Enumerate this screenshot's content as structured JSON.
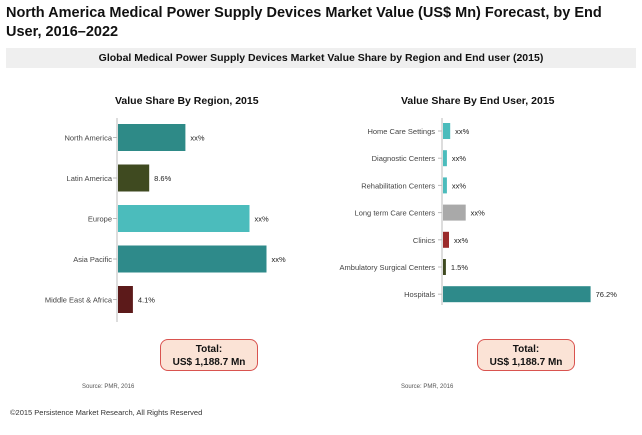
{
  "title": "North America Medical Power Supply Devices Market Value (US$ Mn) Forecast, by End User, 2016–2022",
  "subtitle": "Global Medical Power Supply Devices Market Value Share by Region and End user (2015)",
  "colors": {
    "teal_dark": "#2e8a87",
    "olive_dark": "#3f4a20",
    "teal_light": "#4bbcbc",
    "teal_mid": "#2e8a8a",
    "maroon": "#5c1a1a",
    "gray": "#a9a9a9",
    "red": "#9b2b2b",
    "total_bg": "#fbe3d6",
    "total_border": "#d9534f"
  },
  "chart_data": [
    {
      "type": "bar",
      "orientation": "horizontal",
      "title": "Value Share By Region, 2015",
      "categories": [
        "North America",
        "Latin America",
        "Europe",
        "Asia Pacific",
        "Middle East & Africa"
      ],
      "values": [
        18.6,
        8.6,
        36.3,
        41.0,
        4.1
      ],
      "data_labels": [
        "xx%",
        "8.6%",
        "xx%",
        "xx%",
        "4.1%"
      ],
      "bar_colors": [
        "#2e8a87",
        "#3f4a20",
        "#4bbcbc",
        "#2e8a8a",
        "#5c1a1a"
      ],
      "xlim": [
        0,
        45
      ],
      "grid": false,
      "legend": "none"
    },
    {
      "type": "bar",
      "orientation": "horizontal",
      "title": "Value Share By End User, 2015",
      "categories": [
        "Home Care Settings",
        "Diagnostic Centers",
        "Rehabilitation Centers",
        "Long term Care Centers",
        "Clinics",
        "Ambulatory Surgical Centers",
        "Hospitals"
      ],
      "values": [
        3.7,
        2.0,
        2.0,
        11.7,
        3.1,
        1.5,
        76.2
      ],
      "data_labels": [
        "xx%",
        "xx%",
        "xx%",
        "xx%",
        "xx%",
        "1.5%",
        "76.2%"
      ],
      "bar_colors": [
        "#4bbcbc",
        "#4bbcbc",
        "#4bbcbc",
        "#a9a9a9",
        "#9b2b2b",
        "#3f4a20",
        "#2e8a8a"
      ],
      "xlim": [
        0,
        80
      ],
      "grid": false,
      "legend": "none"
    }
  ],
  "totals": [
    {
      "label": "Total:",
      "value": "US$ 1,188.7 Mn"
    },
    {
      "label": "Total:",
      "value": "US$ 1,188.7 Mn"
    }
  ],
  "sources": [
    "Source: PMR, 2016",
    "Source: PMR, 2016"
  ],
  "copyright": "©2015 Persistence Market Research, All Rights Reserved"
}
